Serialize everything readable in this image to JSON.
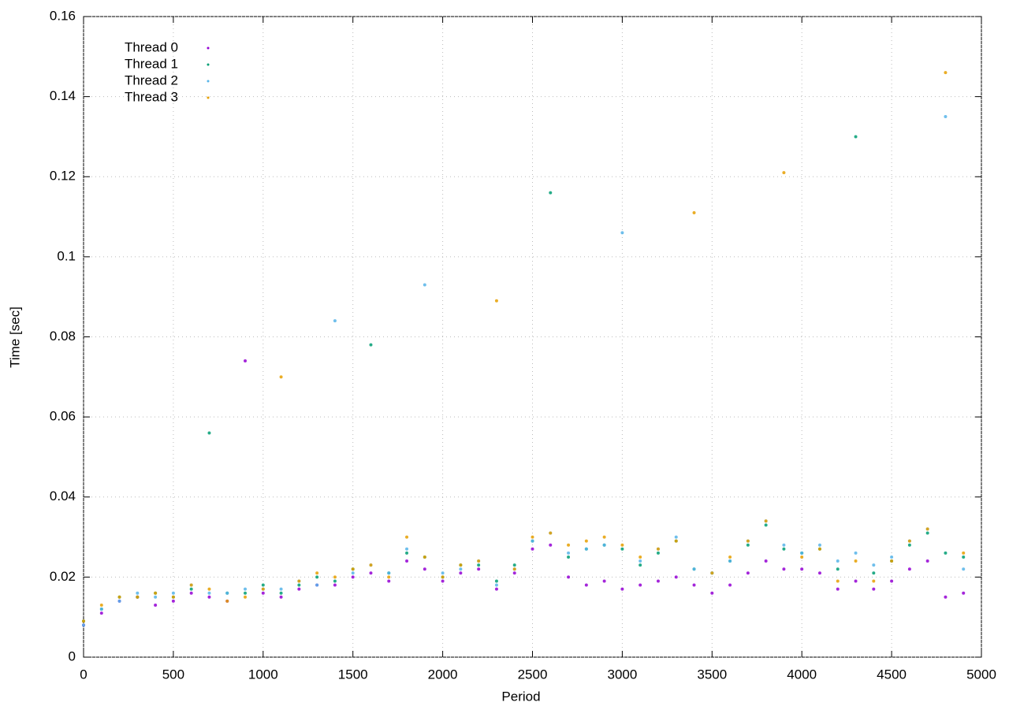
{
  "chart_data": {
    "type": "scatter",
    "xlabel": "Period",
    "ylabel": "Time [sec]",
    "x": [
      0,
      100,
      200,
      300,
      400,
      500,
      600,
      700,
      800,
      900,
      1000,
      1100,
      1200,
      1300,
      1400,
      1500,
      1600,
      1700,
      1800,
      1900,
      2000,
      2100,
      2200,
      2300,
      2400,
      2500,
      2600,
      2700,
      2800,
      2900,
      3000,
      3100,
      3200,
      3300,
      3400,
      3500,
      3600,
      3700,
      3800,
      3900,
      4000,
      4100,
      4200,
      4300,
      4400,
      4500,
      4600,
      4700,
      4800,
      4900
    ],
    "series": [
      {
        "name": "Thread 0",
        "color": "#9400d3",
        "values": [
          0.008,
          0.011,
          0.014,
          0.015,
          0.013,
          0.014,
          0.016,
          0.015,
          0.014,
          0.074,
          0.016,
          0.015,
          0.017,
          0.018,
          0.018,
          0.02,
          0.021,
          0.019,
          0.024,
          0.022,
          0.019,
          0.021,
          0.022,
          0.017,
          0.021,
          0.027,
          0.028,
          0.02,
          0.018,
          0.019,
          0.017,
          0.018,
          0.019,
          0.02,
          0.018,
          0.016,
          0.018,
          0.021,
          0.024,
          0.022,
          0.022,
          0.021,
          0.017,
          0.019,
          0.017,
          0.019,
          0.022,
          0.024,
          0.015,
          0.016
        ]
      },
      {
        "name": "Thread 1",
        "color": "#009e73",
        "values": [
          0.009,
          0.012,
          0.015,
          0.015,
          0.016,
          0.015,
          0.017,
          0.056,
          0.016,
          0.016,
          0.018,
          0.016,
          0.018,
          0.02,
          0.019,
          0.022,
          0.078,
          0.021,
          0.026,
          0.025,
          0.02,
          0.023,
          0.023,
          0.019,
          0.023,
          0.029,
          0.116,
          0.025,
          0.027,
          0.028,
          0.027,
          0.023,
          0.026,
          0.029,
          0.022,
          0.021,
          0.024,
          0.028,
          0.033,
          0.027,
          0.026,
          0.027,
          0.022,
          0.13,
          0.021,
          0.024,
          0.028,
          0.031,
          0.026,
          0.025
        ]
      },
      {
        "name": "Thread 2",
        "color": "#56b4e9",
        "values": [
          0.008,
          0.012,
          0.014,
          0.016,
          0.015,
          0.016,
          0.018,
          0.016,
          0.016,
          0.017,
          0.017,
          0.017,
          0.019,
          0.018,
          0.084,
          0.021,
          0.023,
          0.021,
          0.027,
          0.093,
          0.021,
          0.022,
          0.024,
          0.018,
          0.022,
          0.029,
          0.031,
          0.026,
          0.027,
          0.028,
          0.106,
          0.024,
          0.027,
          0.03,
          0.022,
          0.021,
          0.024,
          0.029,
          0.034,
          0.028,
          0.026,
          0.028,
          0.024,
          0.026,
          0.023,
          0.025,
          0.029,
          0.032,
          0.135,
          0.022
        ]
      },
      {
        "name": "Thread 3",
        "color": "#e69f00",
        "values": [
          0.009,
          0.013,
          0.015,
          0.015,
          0.016,
          0.015,
          0.018,
          0.017,
          0.014,
          0.015,
          0.017,
          0.07,
          0.019,
          0.021,
          0.02,
          0.022,
          0.023,
          0.02,
          0.03,
          0.025,
          0.02,
          0.023,
          0.024,
          0.089,
          0.022,
          0.03,
          0.031,
          0.028,
          0.029,
          0.03,
          0.028,
          0.025,
          0.027,
          0.029,
          0.111,
          0.021,
          0.025,
          0.029,
          0.034,
          0.121,
          0.025,
          0.027,
          0.019,
          0.024,
          0.019,
          0.024,
          0.029,
          0.032,
          0.146,
          0.026
        ]
      }
    ],
    "xlim": [
      0,
      5000
    ],
    "xticks": [
      0,
      500,
      1000,
      1500,
      2000,
      2500,
      3000,
      3500,
      4000,
      4500,
      5000
    ],
    "ylim": [
      0,
      0.16
    ],
    "yticks": [
      0,
      0.02,
      0.04,
      0.06,
      0.08,
      0.1,
      0.12,
      0.14,
      0.16
    ],
    "grid": true,
    "legend": "top-left"
  }
}
